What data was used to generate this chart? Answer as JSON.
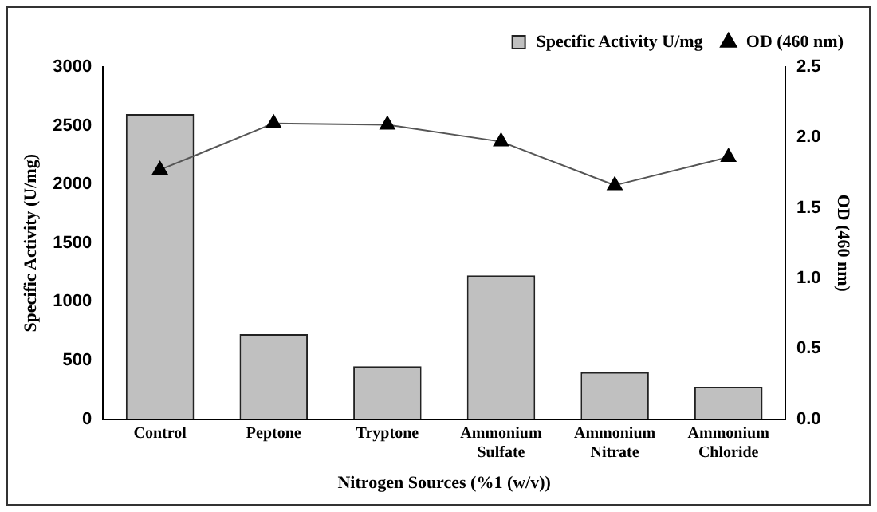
{
  "chart_data": {
    "type": "bar",
    "xlabel": "Nitrogen Sources (%1 (w/v))",
    "ylabel": "Specific Activity (U/mg)",
    "y2label": "OD (460 nm)",
    "categories": [
      "Control",
      "Peptone",
      "Tryptone",
      "Ammonium Sulfate",
      "Ammonium Nitrate",
      "Ammonium Chloride"
    ],
    "series": [
      {
        "name": "Specific Activity U/mg",
        "color": "#c0c0c0",
        "values": [
          2600,
          725,
          450,
          1225,
          400,
          275
        ]
      },
      {
        "name": "OD (460 nm)",
        "type": "line",
        "axis": "y2",
        "color": "#000000",
        "marker": "triangle",
        "values": [
          1.77,
          2.1,
          2.09,
          1.97,
          1.66,
          1.86
        ]
      }
    ],
    "ylim": [
      0,
      3000
    ],
    "yticks": [
      0,
      500,
      1000,
      1500,
      2000,
      2500,
      3000
    ],
    "y2lim": [
      0,
      2.5
    ],
    "y2ticks": [
      {
        "value": 0,
        "label": "0.0"
      },
      {
        "value": 0.5,
        "label": "0.5"
      },
      {
        "value": 1,
        "label": "1.0"
      },
      {
        "value": 1.5,
        "label": "1.5"
      },
      {
        "value": 2,
        "label": "2.0"
      },
      {
        "value": 2.5,
        "label": "2.5"
      }
    ],
    "grid": false,
    "legend": "top right"
  }
}
